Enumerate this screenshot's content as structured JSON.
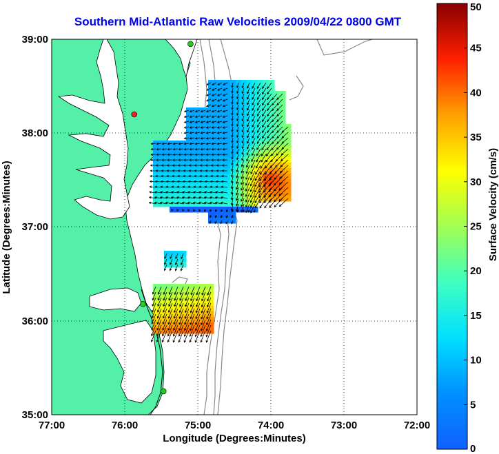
{
  "title": "Southern Mid-Atlantic Raw Velocities 2009/04/22 0800 GMT",
  "map": {
    "xlabel": "Longitude (Degrees:Minutes)",
    "ylabel": "Latitude (Degrees:Minutes)",
    "x_ticks": [
      "77:00",
      "76:00",
      "75:00",
      "74:00",
      "73:00",
      "72:00"
    ],
    "y_ticks": [
      "39:00",
      "38:00",
      "37:00",
      "36:00",
      "35:00"
    ],
    "lon_range": [
      -77,
      -72
    ],
    "lat_range": [
      35,
      39
    ],
    "grid": "dotted",
    "land_color": "#55f0a8",
    "water_color": "#ffffff",
    "coast_color": "#000000",
    "bathymetry_color": "#888888"
  },
  "colorbar": {
    "label": "Surface Velocity (cm/s)",
    "ticks": [
      "0",
      "5",
      "10",
      "15",
      "20",
      "25",
      "30",
      "35",
      "40",
      "45",
      "50"
    ],
    "range": [
      0,
      50
    ],
    "colormap": "jet"
  },
  "stations": [
    {
      "lon": -75.1,
      "lat": 38.95,
      "color": "#22cc22"
    },
    {
      "lon": -75.87,
      "lat": 38.2,
      "color": "#ee2222"
    },
    {
      "lon": -75.75,
      "lat": 36.18,
      "color": "#22cc22"
    },
    {
      "lon": -75.47,
      "lat": 35.25,
      "color": "#22cc22"
    }
  ]
}
